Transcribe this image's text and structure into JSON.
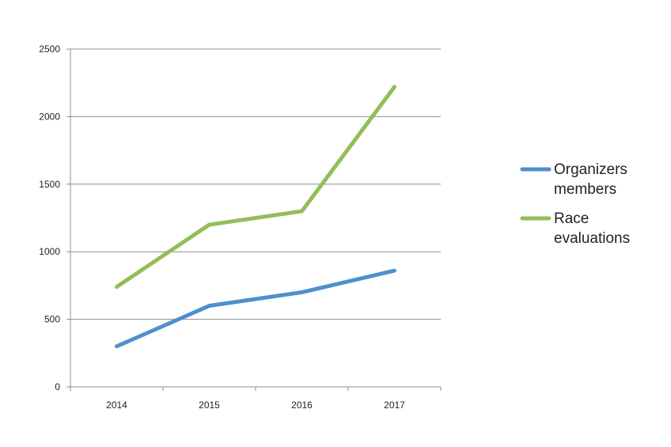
{
  "chart_data": {
    "type": "line",
    "title": "",
    "xlabel": "",
    "ylabel": "",
    "x": [
      "2014",
      "2015",
      "2016",
      "2017"
    ],
    "ylim": [
      0,
      2500
    ],
    "yticks": [
      0,
      500,
      1000,
      1500,
      2000,
      2500
    ],
    "grid": "horizontal",
    "legend_position": "right",
    "series": [
      {
        "name_lines": [
          "Organizers",
          "members"
        ],
        "color": "#4f8fcd",
        "values": [
          300,
          600,
          700,
          860
        ]
      },
      {
        "name_lines": [
          "Race",
          "evaluations"
        ],
        "color": "#93bd5a",
        "values": [
          740,
          1200,
          1300,
          2220
        ]
      }
    ]
  }
}
